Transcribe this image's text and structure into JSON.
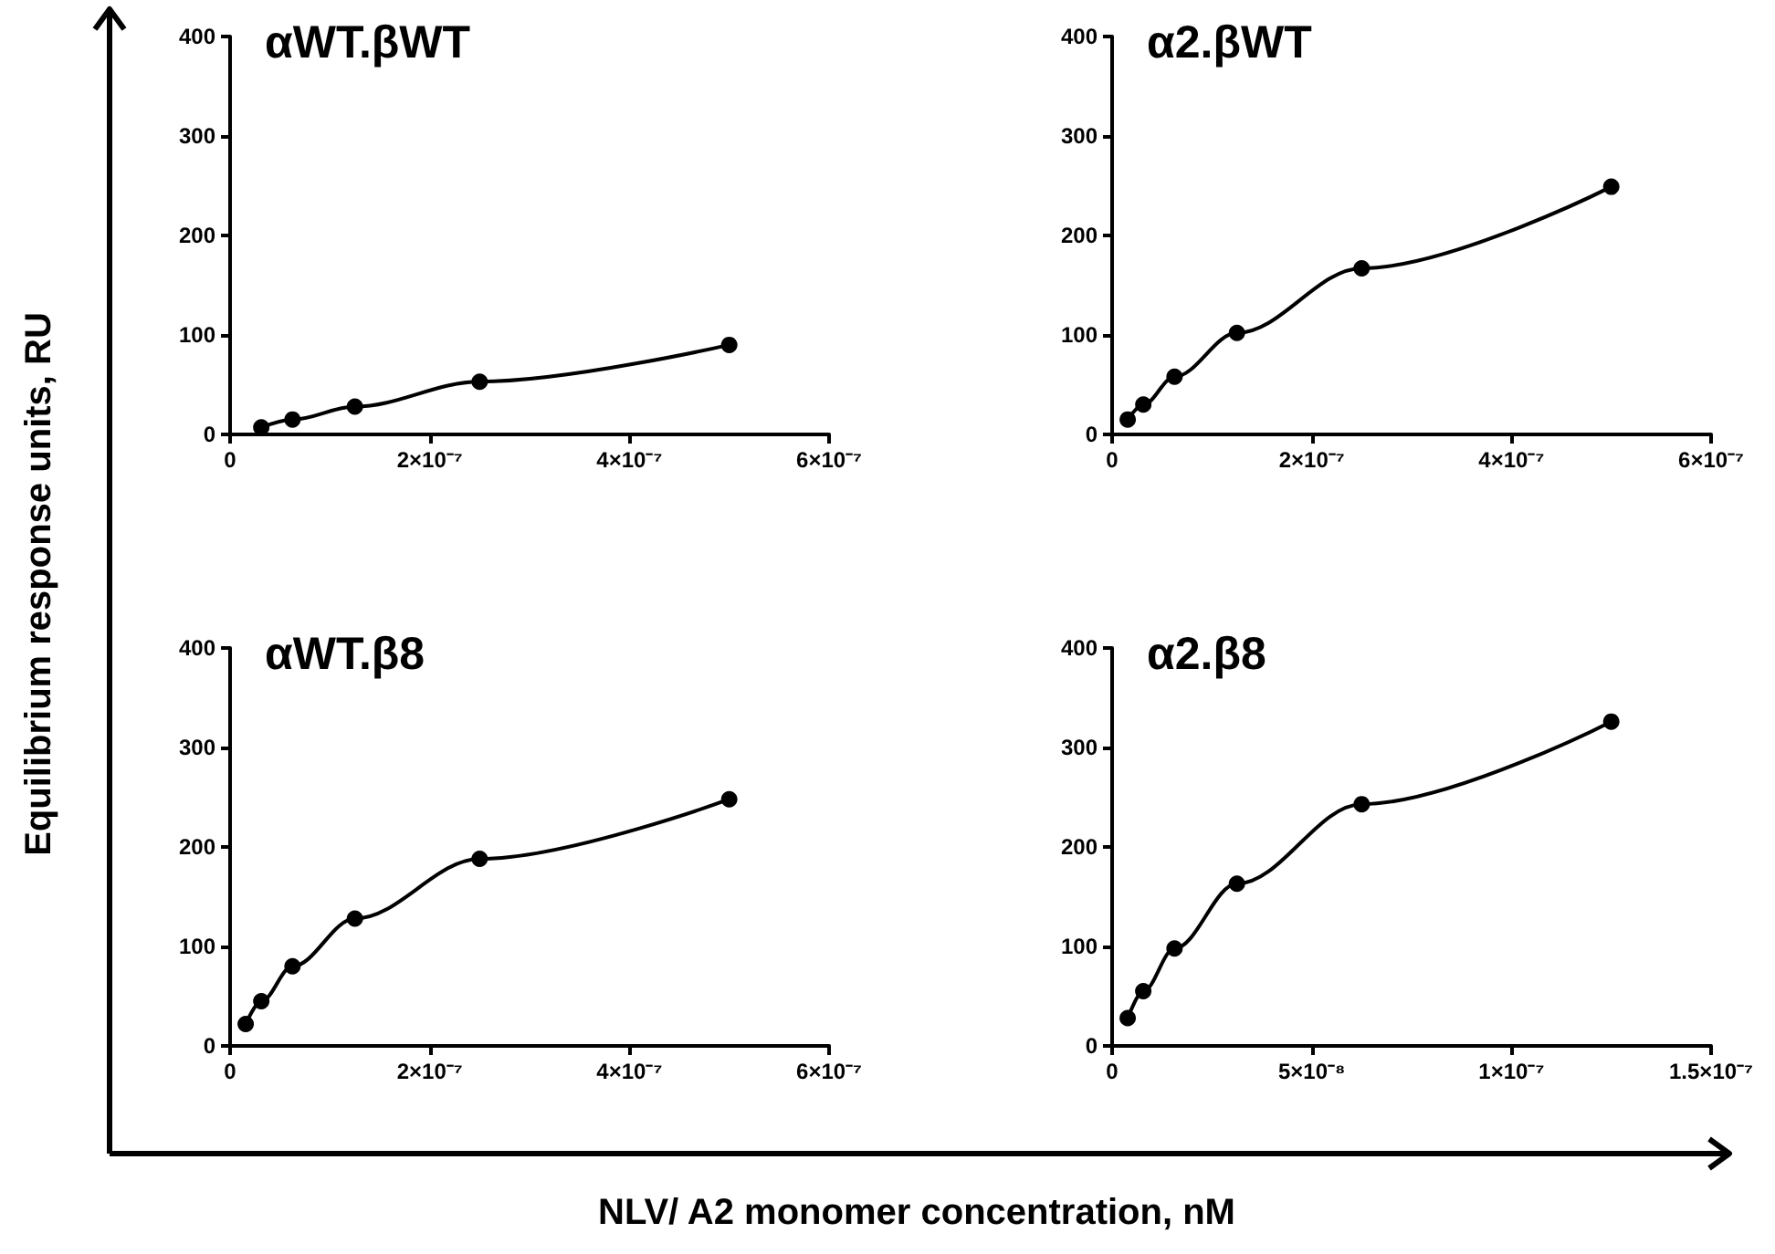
{
  "chart_data": [
    {
      "type": "line",
      "title": "αWT.βWT",
      "ylabel": "Equilibrium response units, RU",
      "xlabel": "NLV/ A2 monomer concentration, nM",
      "marker": "circle",
      "line_style": "solid",
      "series": [
        {
          "color": "#000000",
          "x": [
            3.125e-08,
            6.25e-08,
            1.25e-07,
            2.5e-07,
            5e-07
          ],
          "values": [
            7,
            15,
            28,
            53,
            90
          ]
        }
      ],
      "xlim": [
        0,
        6e-07
      ],
      "xticks": [
        {
          "value": 0,
          "label": "0"
        },
        {
          "value": 2e-07,
          "label": "2×10⁻⁷"
        },
        {
          "value": 4e-07,
          "label": "4×10⁻⁷"
        },
        {
          "value": 6e-07,
          "label": "6×10⁻⁷"
        }
      ],
      "ylim": [
        0,
        400
      ],
      "yticks": [
        0,
        100,
        200,
        300,
        400
      ]
    },
    {
      "type": "line",
      "title": "α2.βWT",
      "marker": "circle",
      "line_style": "solid",
      "series": [
        {
          "color": "#000000",
          "x": [
            1.5625e-08,
            3.125e-08,
            6.25e-08,
            1.25e-07,
            2.5e-07,
            5e-07
          ],
          "values": [
            15,
            30,
            58,
            102,
            167,
            249
          ]
        }
      ],
      "xlim": [
        0,
        6e-07
      ],
      "xticks": [
        {
          "value": 0,
          "label": "0"
        },
        {
          "value": 2e-07,
          "label": "2×10⁻⁷"
        },
        {
          "value": 4e-07,
          "label": "4×10⁻⁷"
        },
        {
          "value": 6e-07,
          "label": "6×10⁻⁷"
        }
      ],
      "ylim": [
        0,
        400
      ],
      "yticks": [
        0,
        100,
        200,
        300,
        400
      ]
    },
    {
      "type": "line",
      "title": "αWT.β8",
      "marker": "circle",
      "line_style": "solid",
      "series": [
        {
          "color": "#000000",
          "x": [
            1.5625e-08,
            3.125e-08,
            6.25e-08,
            1.25e-07,
            2.5e-07,
            5e-07
          ],
          "values": [
            22,
            45,
            80,
            128,
            188,
            248
          ]
        }
      ],
      "xlim": [
        0,
        6e-07
      ],
      "xticks": [
        {
          "value": 0,
          "label": "0"
        },
        {
          "value": 2e-07,
          "label": "2×10⁻⁷"
        },
        {
          "value": 4e-07,
          "label": "4×10⁻⁷"
        },
        {
          "value": 6e-07,
          "label": "6×10⁻⁷"
        }
      ],
      "ylim": [
        0,
        400
      ],
      "yticks": [
        0,
        100,
        200,
        300,
        400
      ]
    },
    {
      "type": "line",
      "title": "α2.β8",
      "marker": "circle",
      "line_style": "solid",
      "series": [
        {
          "color": "#000000",
          "x": [
            3.9e-09,
            7.8e-09,
            1.5625e-08,
            3.125e-08,
            6.25e-08,
            1.25e-07
          ],
          "values": [
            28,
            55,
            98,
            163,
            243,
            326
          ]
        }
      ],
      "xlim": [
        0,
        1.5e-07
      ],
      "xticks": [
        {
          "value": 0,
          "label": "0"
        },
        {
          "value": 5e-08,
          "label": "5×10⁻⁸"
        },
        {
          "value": 1e-07,
          "label": "1×10⁻⁷"
        },
        {
          "value": 1.5e-07,
          "label": "1.5×10⁻⁷"
        }
      ],
      "ylim": [
        0,
        400
      ],
      "yticks": [
        0,
        100,
        200,
        300,
        400
      ]
    }
  ]
}
